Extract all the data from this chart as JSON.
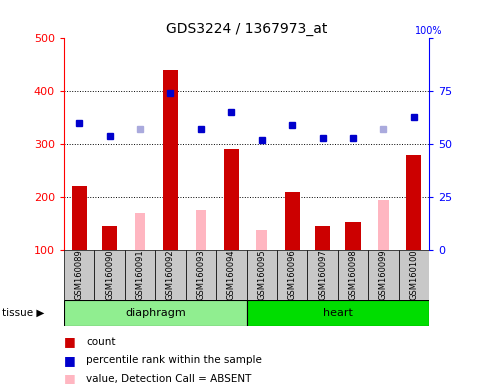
{
  "title": "GDS3224 / 1367973_at",
  "samples": [
    "GSM160089",
    "GSM160090",
    "GSM160091",
    "GSM160092",
    "GSM160093",
    "GSM160094",
    "GSM160095",
    "GSM160096",
    "GSM160097",
    "GSM160098",
    "GSM160099",
    "GSM160100"
  ],
  "count_values": [
    220,
    145,
    null,
    440,
    null,
    290,
    null,
    210,
    145,
    152,
    null,
    280
  ],
  "count_absent_values": [
    null,
    null,
    170,
    null,
    175,
    null,
    138,
    null,
    null,
    null,
    193,
    null
  ],
  "percentile_values": [
    60,
    54,
    null,
    74,
    57,
    65,
    52,
    59,
    53,
    53,
    null,
    63
  ],
  "percentile_absent_values": [
    null,
    null,
    57,
    null,
    null,
    null,
    null,
    null,
    null,
    null,
    57,
    null
  ],
  "ylim_left": [
    100,
    500
  ],
  "ylim_right": [
    0,
    100
  ],
  "yticks_left": [
    100,
    200,
    300,
    400,
    500
  ],
  "yticks_right": [
    0,
    25,
    50,
    75,
    100
  ],
  "grid_values": [
    200,
    300,
    400
  ],
  "bar_color_present": "#CC0000",
  "bar_color_absent": "#FFB6C1",
  "dot_color_present": "#0000CC",
  "dot_color_absent": "#AAAADD",
  "bg_color_xtick": "#C8C8C8",
  "diaphragm_color": "#90EE90",
  "heart_color": "#00DD00",
  "bar_width": 0.5,
  "absent_bar_width": 0.35
}
